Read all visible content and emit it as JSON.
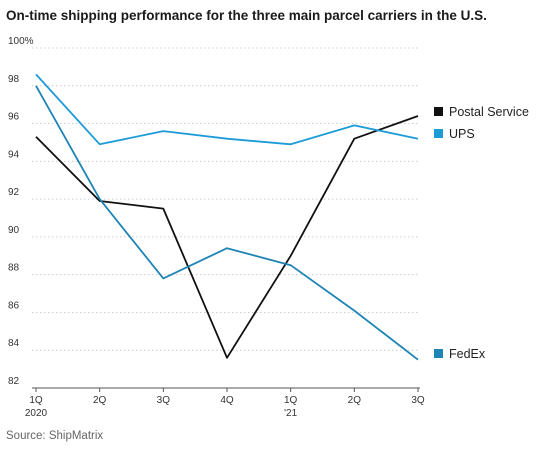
{
  "title": "On-time shipping performance for the three main parcel carriers in the U.S.",
  "source": "Source: ShipMatrix",
  "chart_data": {
    "type": "line",
    "title": "On-time shipping performance for the three main parcel carriers in the U.S.",
    "xlabel": "",
    "ylabel": "",
    "categories": [
      "1Q",
      "2Q",
      "3Q",
      "4Q",
      "1Q",
      "2Q",
      "3Q"
    ],
    "category_sublabels": [
      "2020",
      "",
      "",
      "",
      "'21",
      "",
      ""
    ],
    "ylim": [
      82,
      100
    ],
    "y_ticks": [
      "100%",
      "98",
      "96",
      "94",
      "92",
      "90",
      "88",
      "86",
      "84",
      "82"
    ],
    "grid": true,
    "legend_placement": "right",
    "series": [
      {
        "name": "Postal Service",
        "color": "#111111",
        "values": [
          95.3,
          91.9,
          91.5,
          83.6,
          89.0,
          95.2,
          96.4
        ]
      },
      {
        "name": "UPS",
        "color": "#1d9bd6",
        "values": [
          98.6,
          94.9,
          95.6,
          95.2,
          94.9,
          95.9,
          95.2
        ]
      },
      {
        "name": "FedEx",
        "color": "#1d84b5",
        "values": [
          98.0,
          92.0,
          87.8,
          89.4,
          88.5,
          86.1,
          83.5
        ]
      }
    ]
  }
}
